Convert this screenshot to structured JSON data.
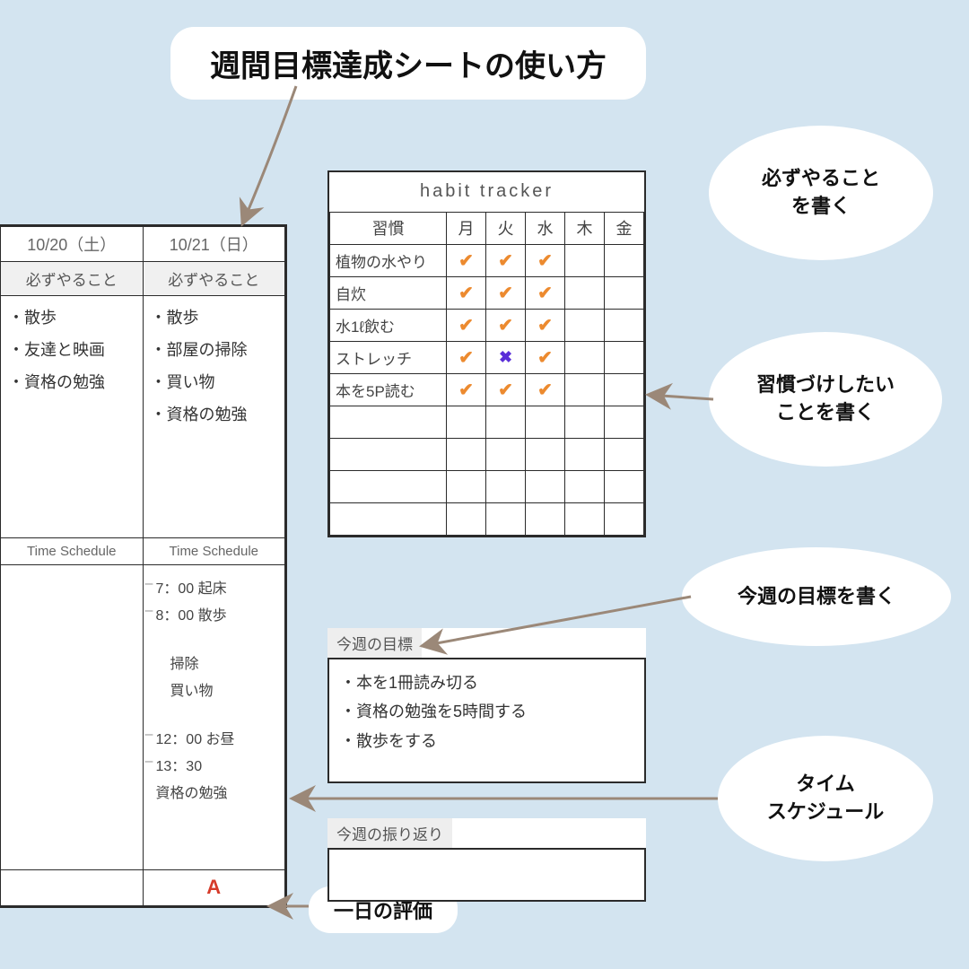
{
  "colors": {
    "page_bg": "#d3e4f0",
    "paper_bg": "#ffffff",
    "border": "#2b2b2b",
    "shade_bg": "#f0f0f0",
    "text": "#333333",
    "muted": "#666666",
    "arrow": "#9b8878",
    "check": "#ec8a2f",
    "cross": "#5a2ed8",
    "grade": "#d63b2a"
  },
  "title": "週間目標達成シートの使い方",
  "bubbles": {
    "must_do": "必ずやること\nを書く",
    "habit": "習慣づけしたい\nことを書く",
    "goal": "今週の目標を書く",
    "schedule": "タイム\nスケジュール"
  },
  "rating_label": "一日の評価",
  "planner": {
    "dates": [
      "10/20（土）",
      "10/21（日）"
    ],
    "section_label": "必ずやること",
    "tasks_sat": [
      "・散歩",
      "・友達と映画",
      "・資格の勉強"
    ],
    "tasks_sun": [
      "・散歩",
      "・部屋の掃除",
      "・買い物",
      "・資格の勉強"
    ],
    "schedule_label": "Time Schedule",
    "schedule_sun": [
      "7：00  起床",
      "8：00  散歩",
      "",
      "　掃除",
      "　買い物",
      "",
      "12：00  お昼",
      "13：30",
      "資格の勉強"
    ],
    "grade": "A"
  },
  "tracker": {
    "title": "habit   tracker",
    "col_label": "習慣",
    "days": [
      "月",
      "火",
      "水",
      "木",
      "金"
    ],
    "rows": [
      {
        "name": "植物の水やり",
        "marks": [
          "✔",
          "✔",
          "✔",
          "",
          ""
        ]
      },
      {
        "name": "自炊",
        "marks": [
          "✔",
          "✔",
          "✔",
          "",
          ""
        ]
      },
      {
        "name": "水1ℓ飲む",
        "marks": [
          "✔",
          "✔",
          "✔",
          "",
          ""
        ]
      },
      {
        "name": "ストレッチ",
        "marks": [
          "✔",
          "✖",
          "✔",
          "",
          ""
        ]
      },
      {
        "name": "本を5P読む",
        "marks": [
          "✔",
          "✔",
          "✔",
          "",
          ""
        ]
      }
    ],
    "blank_rows": 4
  },
  "goals": {
    "label": "今週の目標",
    "items": [
      "・本を1冊読み切る",
      "・資格の勉強を5時間する",
      "・散歩をする"
    ]
  },
  "review": {
    "label": "今週の振り返り"
  }
}
